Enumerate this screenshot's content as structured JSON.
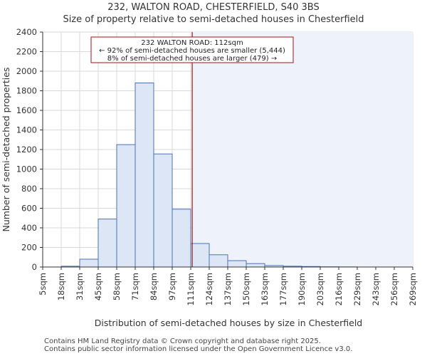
{
  "header": {
    "title_line1": "232, WALTON ROAD, CHESTERFIELD, S40 3BS",
    "title_line2": "Size of property relative to semi-detached houses in Chesterfield"
  },
  "footer": {
    "line1": "Contains HM Land Registry data © Crown copyright and database right 2025.",
    "line2": "Contains public sector information licensed under the Open Government Licence v3.0."
  },
  "colors": {
    "bar_fill": "#dce6f5",
    "bar_stroke": "#4a72b8",
    "highlight_bg": "#eef2fa",
    "marker_line": "#aa1111",
    "annotation_border": "#aa1111",
    "grid": "#d9d9d9"
  },
  "chart_data": {
    "type": "bar",
    "title": "Size of property relative to semi-detached houses in Chesterfield",
    "xlabel": "Distribution of semi-detached houses by size in Chesterfield",
    "ylabel": "Number of semi-detached properties",
    "ylim": [
      0,
      2400
    ],
    "yticks": [
      0,
      200,
      400,
      600,
      800,
      1000,
      1200,
      1400,
      1600,
      1800,
      2000,
      2200,
      2400
    ],
    "bin_edges": [
      "5sqm",
      "18sqm",
      "31sqm",
      "45sqm",
      "58sqm",
      "71sqm",
      "84sqm",
      "97sqm",
      "111sqm",
      "124sqm",
      "137sqm",
      "150sqm",
      "163sqm",
      "177sqm",
      "190sqm",
      "203sqm",
      "216sqm",
      "229sqm",
      "243sqm",
      "256sqm",
      "269sqm"
    ],
    "values": [
      0,
      8,
      80,
      490,
      1250,
      1880,
      1155,
      590,
      240,
      125,
      65,
      35,
      15,
      8,
      5,
      2,
      1,
      0,
      0,
      0
    ],
    "grid": true,
    "marker": {
      "value_bin_position": 8.08,
      "label": "232 WALTON ROAD: 112sqm"
    },
    "annotation": {
      "line1": "232 WALTON ROAD: 112sqm",
      "line2": "← 92% of semi-detached houses are smaller (5,444)",
      "line3": "8% of semi-detached houses are larger (479) →"
    }
  }
}
